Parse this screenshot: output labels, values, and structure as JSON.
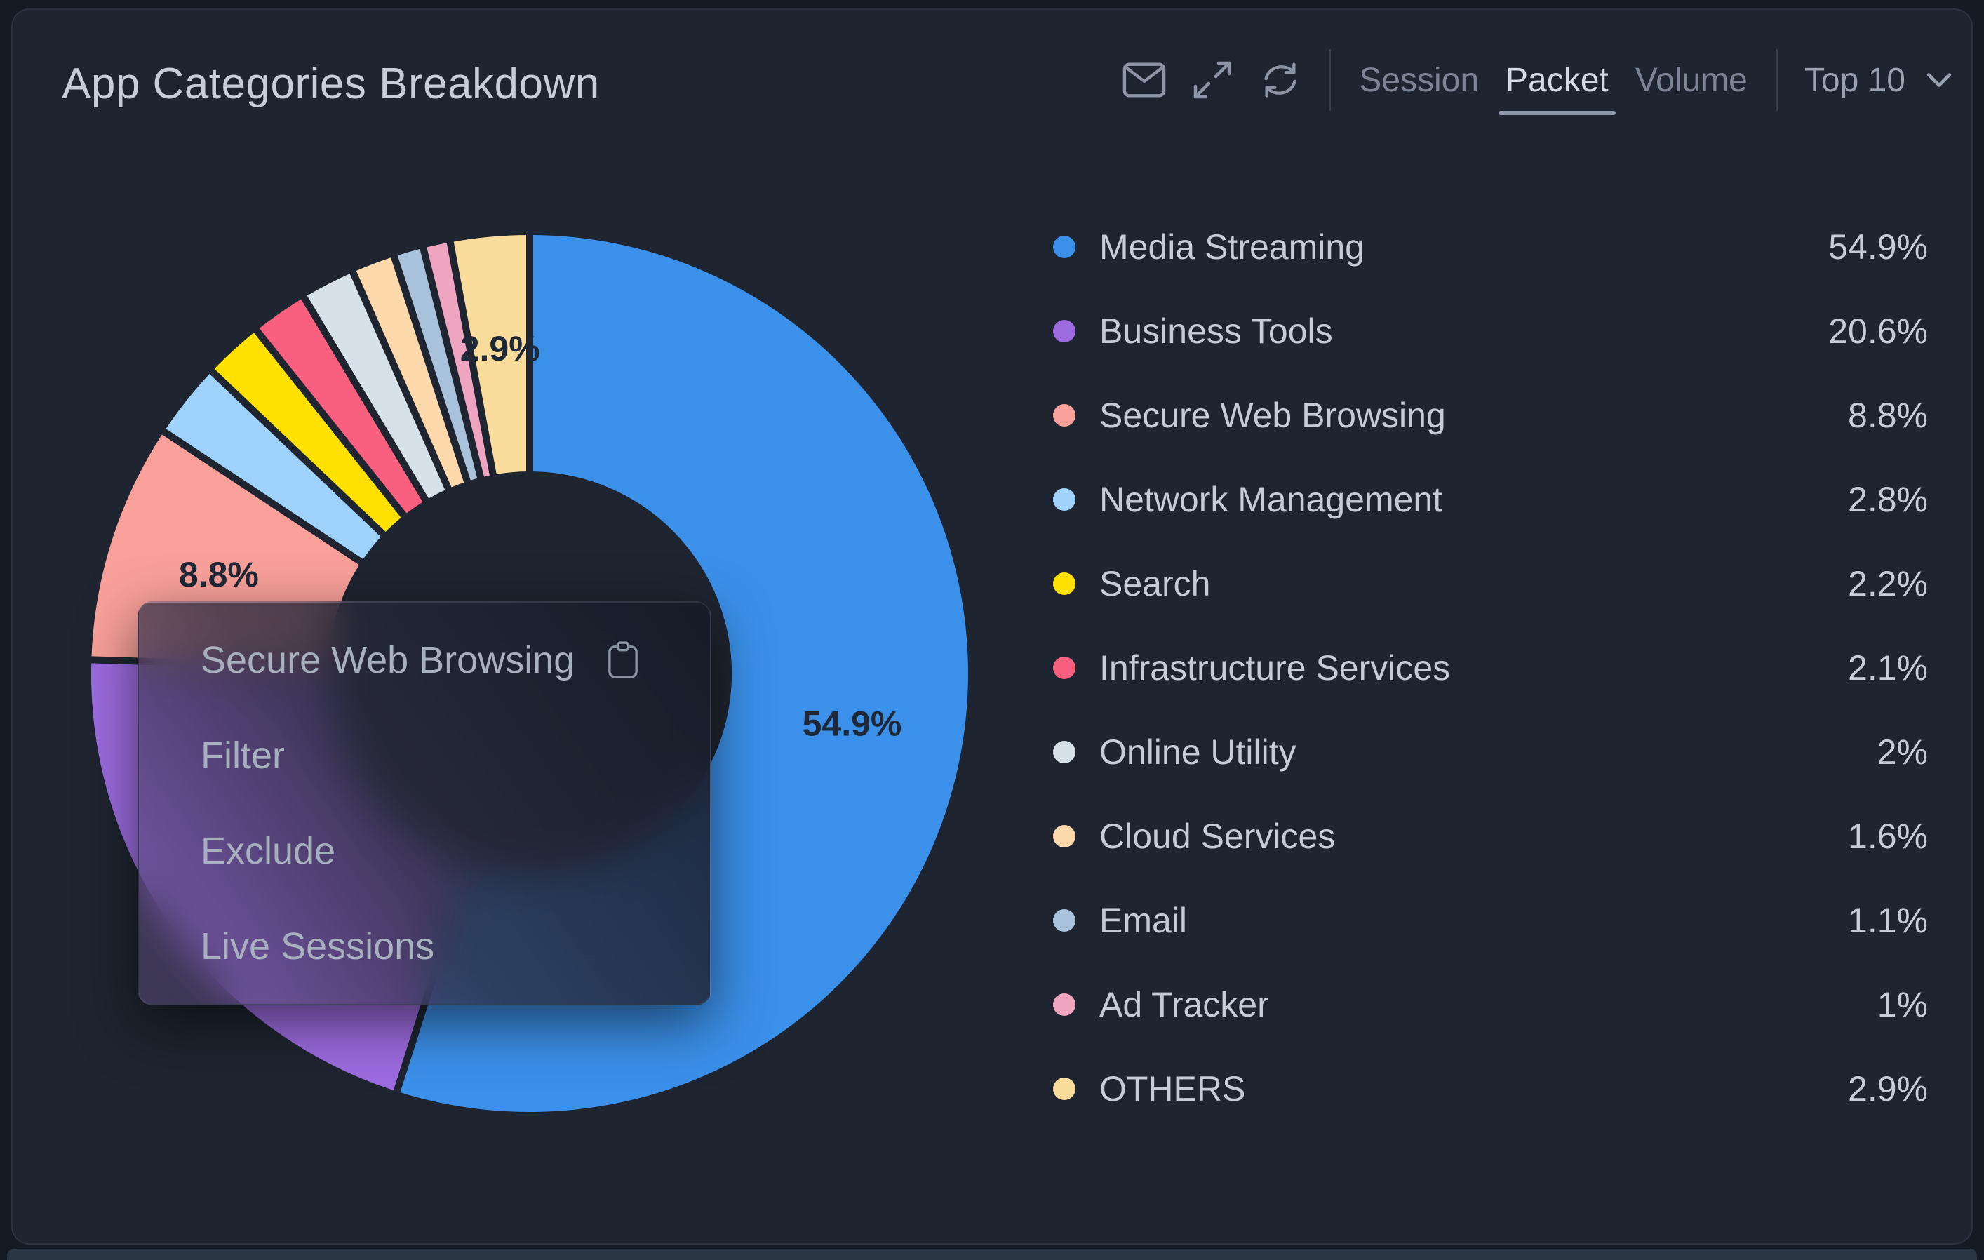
{
  "header": {
    "title": "App Categories Breakdown"
  },
  "toolbar": {
    "icons": [
      {
        "name": "mail-icon"
      },
      {
        "name": "expand-icon"
      },
      {
        "name": "refresh-icon"
      }
    ],
    "tabs": [
      {
        "label": "Session",
        "active": false
      },
      {
        "label": "Packet",
        "active": true
      },
      {
        "label": "Volume",
        "active": false
      }
    ],
    "top_selector": {
      "label": "Top 10"
    }
  },
  "context_menu": {
    "title": "Secure Web Browsing",
    "title_icon": "clipboard-copy-icon",
    "items": [
      "Filter",
      "Exclude",
      "Live Sessions"
    ]
  },
  "chart_data": {
    "type": "pie",
    "subtype": "donut",
    "title": "App Categories Breakdown",
    "legend_position": "right",
    "categories": [
      "Media Streaming",
      "Business Tools",
      "Secure Web Browsing",
      "Network Management",
      "Search",
      "Infrastructure Services",
      "Online Utility",
      "Cloud Services",
      "Email",
      "Ad Tracker",
      "OTHERS"
    ],
    "values": [
      54.9,
      20.6,
      8.8,
      2.8,
      2.2,
      2.1,
      2,
      1.6,
      1.1,
      1,
      2.9
    ],
    "display_values": [
      "54.9%",
      "20.6%",
      "8.8%",
      "2.8%",
      "2.2%",
      "2.1%",
      "2%",
      "1.6%",
      "1.1%",
      "1%",
      "2.9%"
    ],
    "colors": [
      "#3b90e9",
      "#9c6ce0",
      "#f9a09a",
      "#9ed2fa",
      "#ffe100",
      "#f95f7e",
      "#d6e1ea",
      "#fcd8ab",
      "#a7c2da",
      "#efa4c0",
      "#f9dc9c"
    ],
    "slice_labels": {
      "Media Streaming": "54.9%",
      "Secure Web Browsing": "8.8%",
      "OTHERS": "2.9%"
    },
    "start_angle_deg": 0,
    "direction": "clockwise"
  },
  "style_colors": {
    "card_bg": "#1e2430",
    "page_bg": "#141a23",
    "slice_gap": "#1e2430",
    "slice_label": "#1f2836",
    "legend_text": "#c5ccd7",
    "accent_active_tab": "#d2d9e3"
  }
}
